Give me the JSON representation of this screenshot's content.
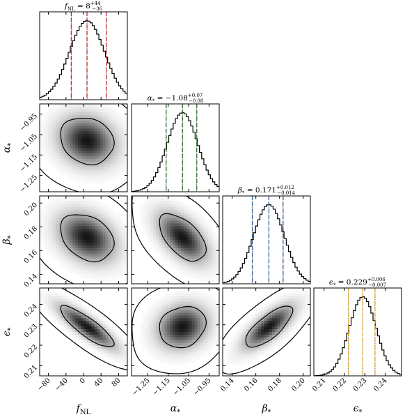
{
  "chart_data": {
    "type": "corner",
    "parameters": [
      {
        "key": "fnl",
        "symbol": "f",
        "subscript": "NL",
        "median": 8,
        "err_plus": 44,
        "err_minus": 36,
        "title": {
          "lhs": "f",
          "sub": "NL",
          "eq": " = ",
          "val": "8",
          "sup": "+44",
          "inf": "−36"
        },
        "axis_label": {
          "main": "f",
          "sub": "NL"
        },
        "range": [
          -100,
          100
        ],
        "ticks": [
          -80,
          -40,
          0,
          40,
          80
        ],
        "tick_labels": [
          "−80",
          "−40",
          "0",
          "40",
          "80"
        ],
        "quantile_color": "#c0282d",
        "marginal": {
          "mean": 8,
          "sigma": 40
        }
      },
      {
        "key": "alpha",
        "symbol": "α",
        "subscript": "*",
        "median": -1.08,
        "err_plus": 0.07,
        "err_minus": 0.08,
        "title": {
          "lhs": "α",
          "sub": "*",
          "eq": " = ",
          "val": "−1.08",
          "sup": "+0.07",
          "inf": "−0.08"
        },
        "axis_label": {
          "main": "α",
          "sub": "*"
        },
        "range": [
          -1.33,
          -0.9
        ],
        "ticks": [
          -1.25,
          -1.15,
          -1.05,
          -0.95
        ],
        "tick_labels": [
          "−1.25",
          "−1.15",
          "−1.05",
          "−0.95"
        ],
        "quantile_color": "#2e6b2e",
        "marginal": {
          "mean": -1.08,
          "sigma": 0.075
        }
      },
      {
        "key": "beta",
        "symbol": "β",
        "subscript": "*",
        "median": 0.171,
        "err_plus": 0.012,
        "err_minus": 0.014,
        "title": {
          "lhs": "β",
          "sub": "*",
          "eq": " = ",
          "val": "0.171",
          "sup": "+0.012",
          "inf": "−0.014"
        },
        "axis_label": {
          "main": "β",
          "sub": "*"
        },
        "range": [
          0.132,
          0.206
        ],
        "ticks": [
          0.14,
          0.16,
          0.18,
          0.2
        ],
        "tick_labels": [
          "0.14",
          "0.16",
          "0.18",
          "0.20"
        ],
        "quantile_color": "#2f5f9e",
        "marginal": {
          "mean": 0.171,
          "sigma": 0.013
        }
      },
      {
        "key": "eps",
        "symbol": "ϵ",
        "subscript": "*",
        "median": 0.229,
        "err_plus": 0.006,
        "err_minus": 0.007,
        "title": {
          "lhs": "ϵ",
          "sub": "*",
          "eq": " = ",
          "val": "0.229",
          "sup": "+0.006",
          "inf": "−0.007"
        },
        "axis_label": {
          "main": "ϵ",
          "sub": "*"
        },
        "range": [
          0.205,
          0.248
        ],
        "ticks": [
          0.21,
          0.22,
          0.23,
          0.24
        ],
        "tick_labels": [
          "0.21",
          "0.22",
          "0.23",
          "0.24"
        ],
        "quantile_color": "#e0a21f",
        "marginal": {
          "mean": 0.229,
          "sigma": 0.0066
        }
      }
    ],
    "correlations": {
      "alpha_fnl": -0.15,
      "beta_fnl": -0.3,
      "beta_alpha": -0.55,
      "eps_fnl": -0.85,
      "eps_alpha": 0.15,
      "eps_beta": 0.75
    },
    "contour_levels": [
      "1-sigma",
      "2-sigma"
    ]
  }
}
